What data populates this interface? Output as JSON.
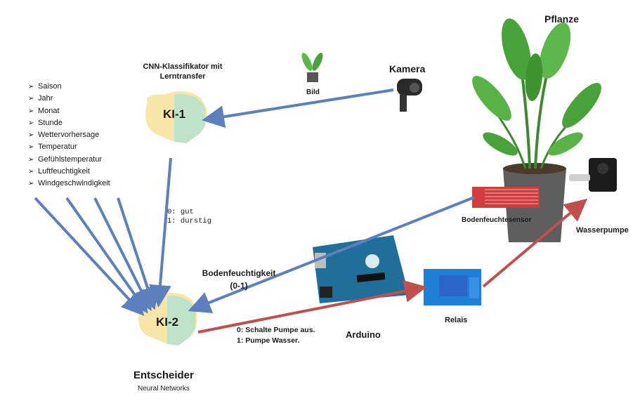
{
  "features": {
    "items": [
      "Saison",
      "Jahr",
      "Monat",
      "Stunde",
      "Wettervorhersage",
      "Temperatur",
      "Gefühlstemperatur",
      "Luftfeuchtigkeit",
      "Windgeschwindigkeit"
    ],
    "bullet_icon": "chevron-right-icon"
  },
  "ki1": {
    "title_line1": "CNN-Klassifikator mit",
    "title_line2": "Lerntransfer",
    "label": "KI-1"
  },
  "ki2": {
    "label": "KI-2",
    "title": "Entscheider",
    "subtitle": "Neural Networks"
  },
  "ki1_output": {
    "line1": "0: gut",
    "line2": "1: durstig"
  },
  "image_label": "Bild",
  "camera_label": "Kamera",
  "plant_label": "Pflanze",
  "sensor_label": "Bodenfeuchtesensor",
  "pump_label": "Wasserpumpe",
  "relay_label": "Relais",
  "arduino_label": "Arduino",
  "moisture": {
    "line1": "Bodenfeuchtigkeit",
    "line2": "(0-1)"
  },
  "decision": {
    "line1": "0:  Schalte Pumpe aus.",
    "line2": "1: Pumpe Wasser."
  },
  "colors": {
    "blue_arrow": "#5b80bd",
    "red_arrow": "#c0504d",
    "board": "#1f6f9a",
    "relay": "#1d7fd6"
  }
}
